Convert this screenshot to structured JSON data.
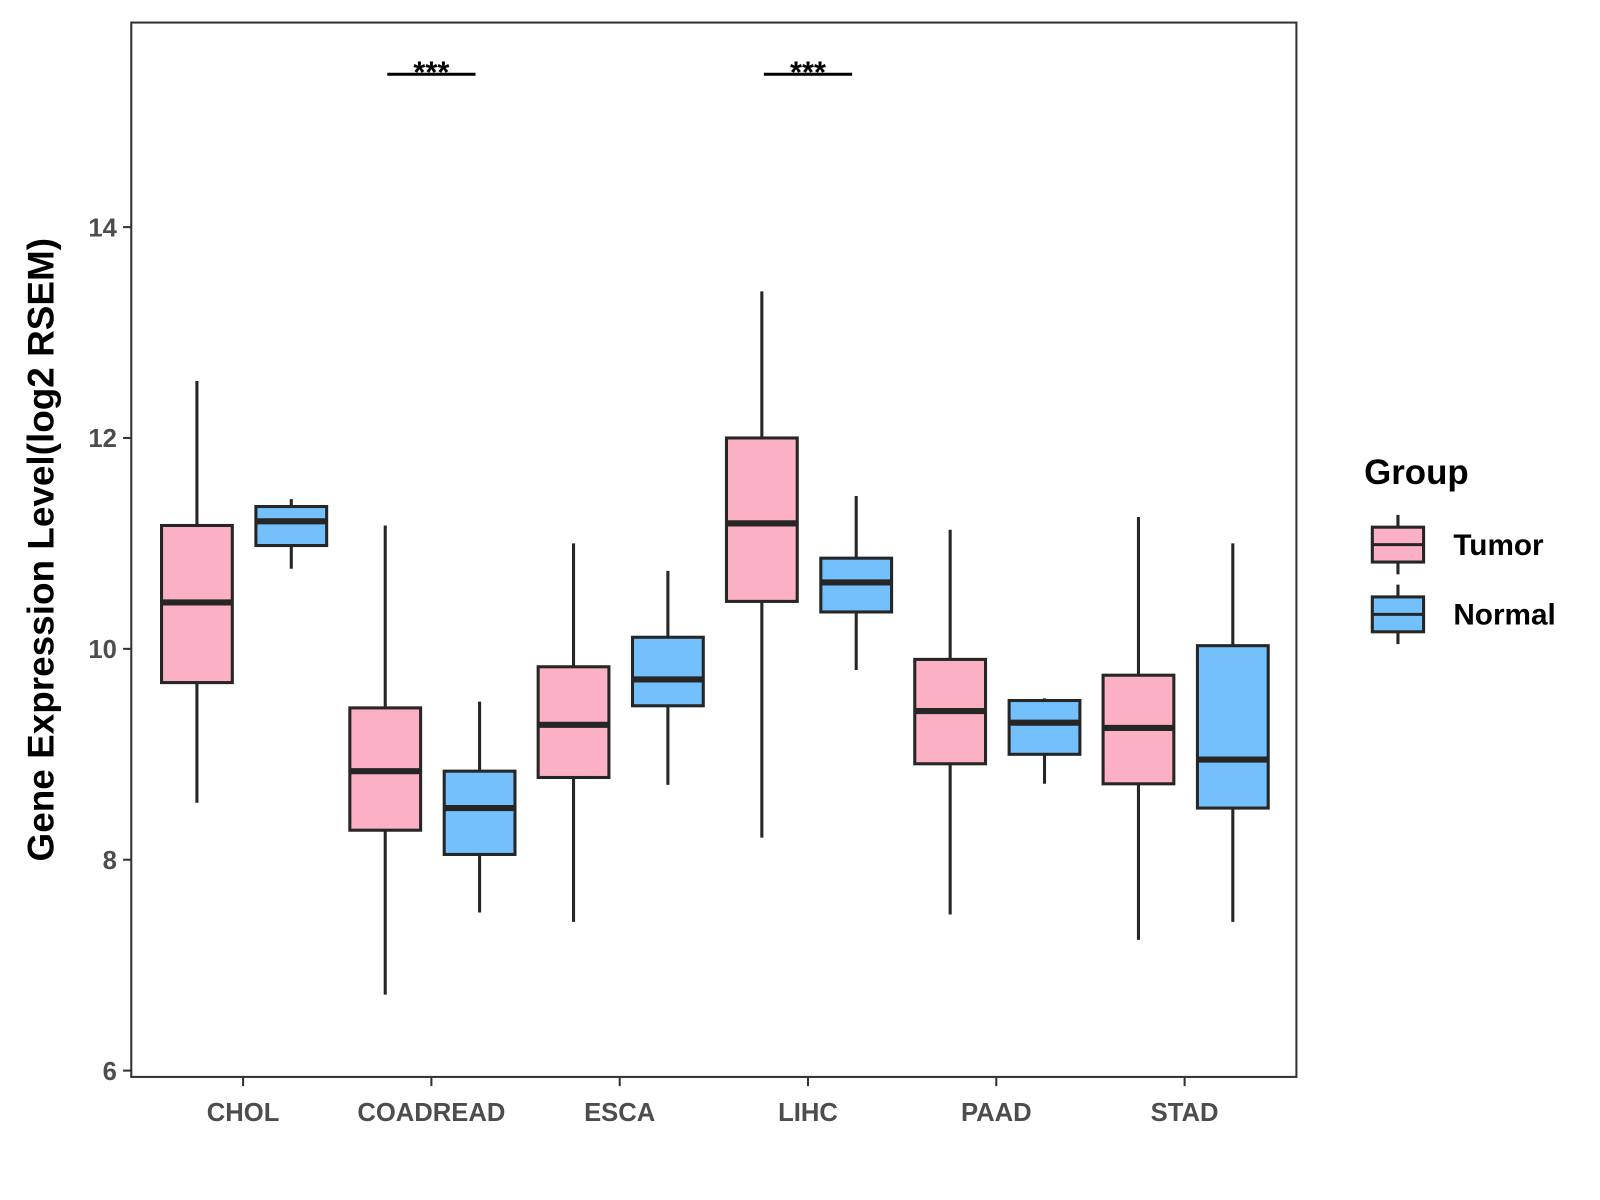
{
  "chart_data": {
    "type": "box",
    "title": "",
    "xlabel": "",
    "ylabel": "Gene Expression Level(log2 RSEM)",
    "ylim": [
      5.94,
      15.94
    ],
    "yticks": [
      6,
      8,
      10,
      12,
      14
    ],
    "categories": [
      "CHOL",
      "COADREAD",
      "ESCA",
      "LIHC",
      "PAAD",
      "STAD"
    ],
    "grid": false,
    "legend": {
      "title": "Group",
      "position": "right"
    },
    "series": [
      {
        "name": "Tumor",
        "color": "#FBB1C3",
        "boxes": [
          {
            "whisker_low": 8.54,
            "q1": 9.68,
            "median": 10.44,
            "q3": 11.17,
            "whisker_high": 12.54
          },
          {
            "whisker_low": 6.72,
            "q1": 8.28,
            "median": 8.84,
            "q3": 9.44,
            "whisker_high": 11.17
          },
          {
            "whisker_low": 7.41,
            "q1": 8.78,
            "median": 9.28,
            "q3": 9.83,
            "whisker_high": 11.0
          },
          {
            "whisker_low": 8.21,
            "q1": 10.45,
            "median": 11.19,
            "q3": 12.0,
            "whisker_high": 13.39
          },
          {
            "whisker_low": 7.48,
            "q1": 8.91,
            "median": 9.41,
            "q3": 9.9,
            "whisker_high": 11.13
          },
          {
            "whisker_low": 7.24,
            "q1": 8.72,
            "median": 9.25,
            "q3": 9.75,
            "whisker_high": 11.25
          }
        ]
      },
      {
        "name": "Normal",
        "color": "#74C0FC",
        "boxes": [
          {
            "whisker_low": 10.76,
            "q1": 10.98,
            "median": 11.21,
            "q3": 11.35,
            "whisker_high": 11.42
          },
          {
            "whisker_low": 7.5,
            "q1": 8.05,
            "median": 8.49,
            "q3": 8.84,
            "whisker_high": 9.5
          },
          {
            "whisker_low": 8.71,
            "q1": 9.46,
            "median": 9.71,
            "q3": 10.11,
            "whisker_high": 10.74
          },
          {
            "whisker_low": 9.8,
            "q1": 10.35,
            "median": 10.63,
            "q3": 10.86,
            "whisker_high": 11.45
          },
          {
            "whisker_low": 8.72,
            "q1": 9.0,
            "median": 9.3,
            "q3": 9.51,
            "whisker_high": 9.53
          },
          {
            "whisker_low": 7.41,
            "q1": 8.49,
            "median": 8.95,
            "q3": 10.03,
            "whisker_high": 11.0
          }
        ]
      }
    ],
    "annotations": [
      {
        "category": "COADREAD",
        "label": "***",
        "y": 15.45
      },
      {
        "category": "LIHC",
        "label": "***",
        "y": 15.45
      }
    ]
  }
}
